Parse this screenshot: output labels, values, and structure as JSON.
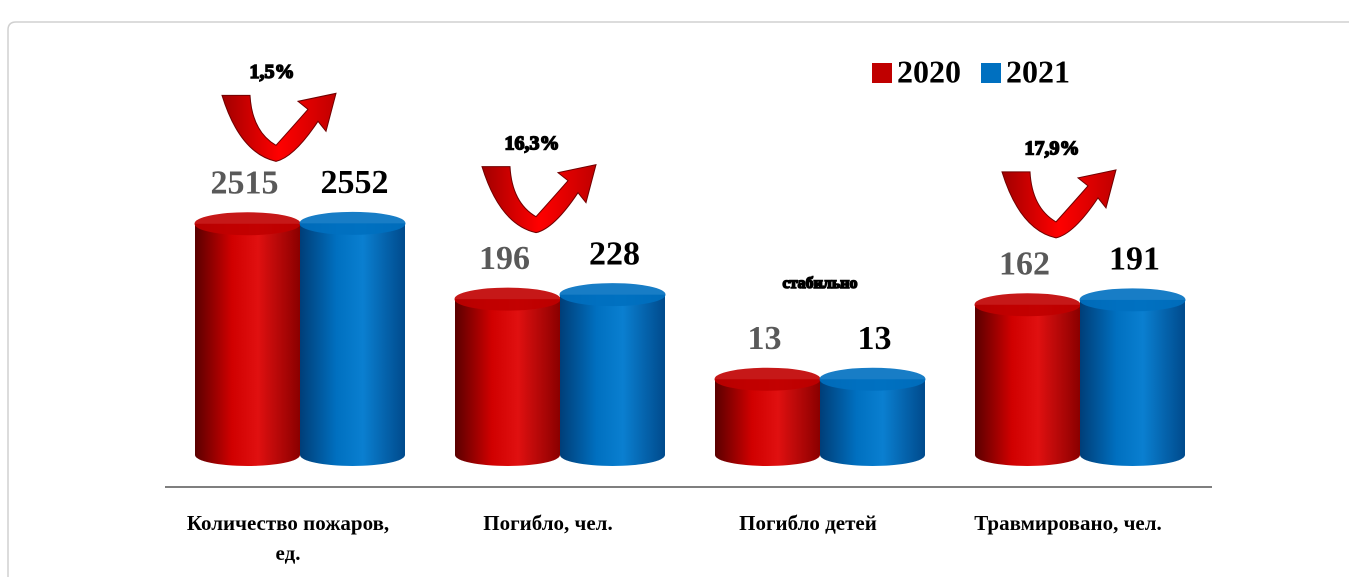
{
  "chart_data": {
    "type": "bar",
    "categories": [
      "Количество пожаров, ед.",
      "Погибло, чел.",
      "Погибло детей",
      "Травмировано, чел."
    ],
    "series": [
      {
        "name": "2020",
        "color": "#c00000",
        "values": [
          2515,
          196,
          13,
          162
        ]
      },
      {
        "name": "2021",
        "color": "#0070c0",
        "values": [
          2552,
          228,
          13,
          191
        ]
      }
    ],
    "annotations": [
      "1,5%",
      "16,3%",
      "стабильно",
      "17,9%"
    ],
    "log": true,
    "ylim": [
      1,
      100000
    ],
    "legend": "top-right"
  }
}
